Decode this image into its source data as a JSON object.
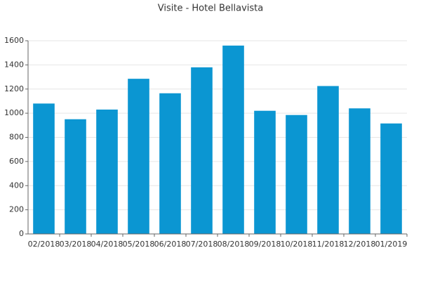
{
  "chart_data": {
    "type": "bar",
    "title": "Visite - Hotel Bellavista",
    "categories": [
      "02/2018",
      "03/2018",
      "04/2018",
      "05/2018",
      "06/2018",
      "07/2018",
      "08/2018",
      "09/2018",
      "10/2018",
      "11/2018",
      "12/2018",
      "01/2019"
    ],
    "values": [
      1080,
      950,
      1030,
      1285,
      1165,
      1380,
      1560,
      1020,
      985,
      1225,
      1040,
      915
    ],
    "color": "#0b96d2",
    "ylim": [
      0,
      1600
    ],
    "yticks": [
      0,
      200,
      400,
      600,
      800,
      1000,
      1200,
      1400,
      1600
    ],
    "grid": true
  }
}
